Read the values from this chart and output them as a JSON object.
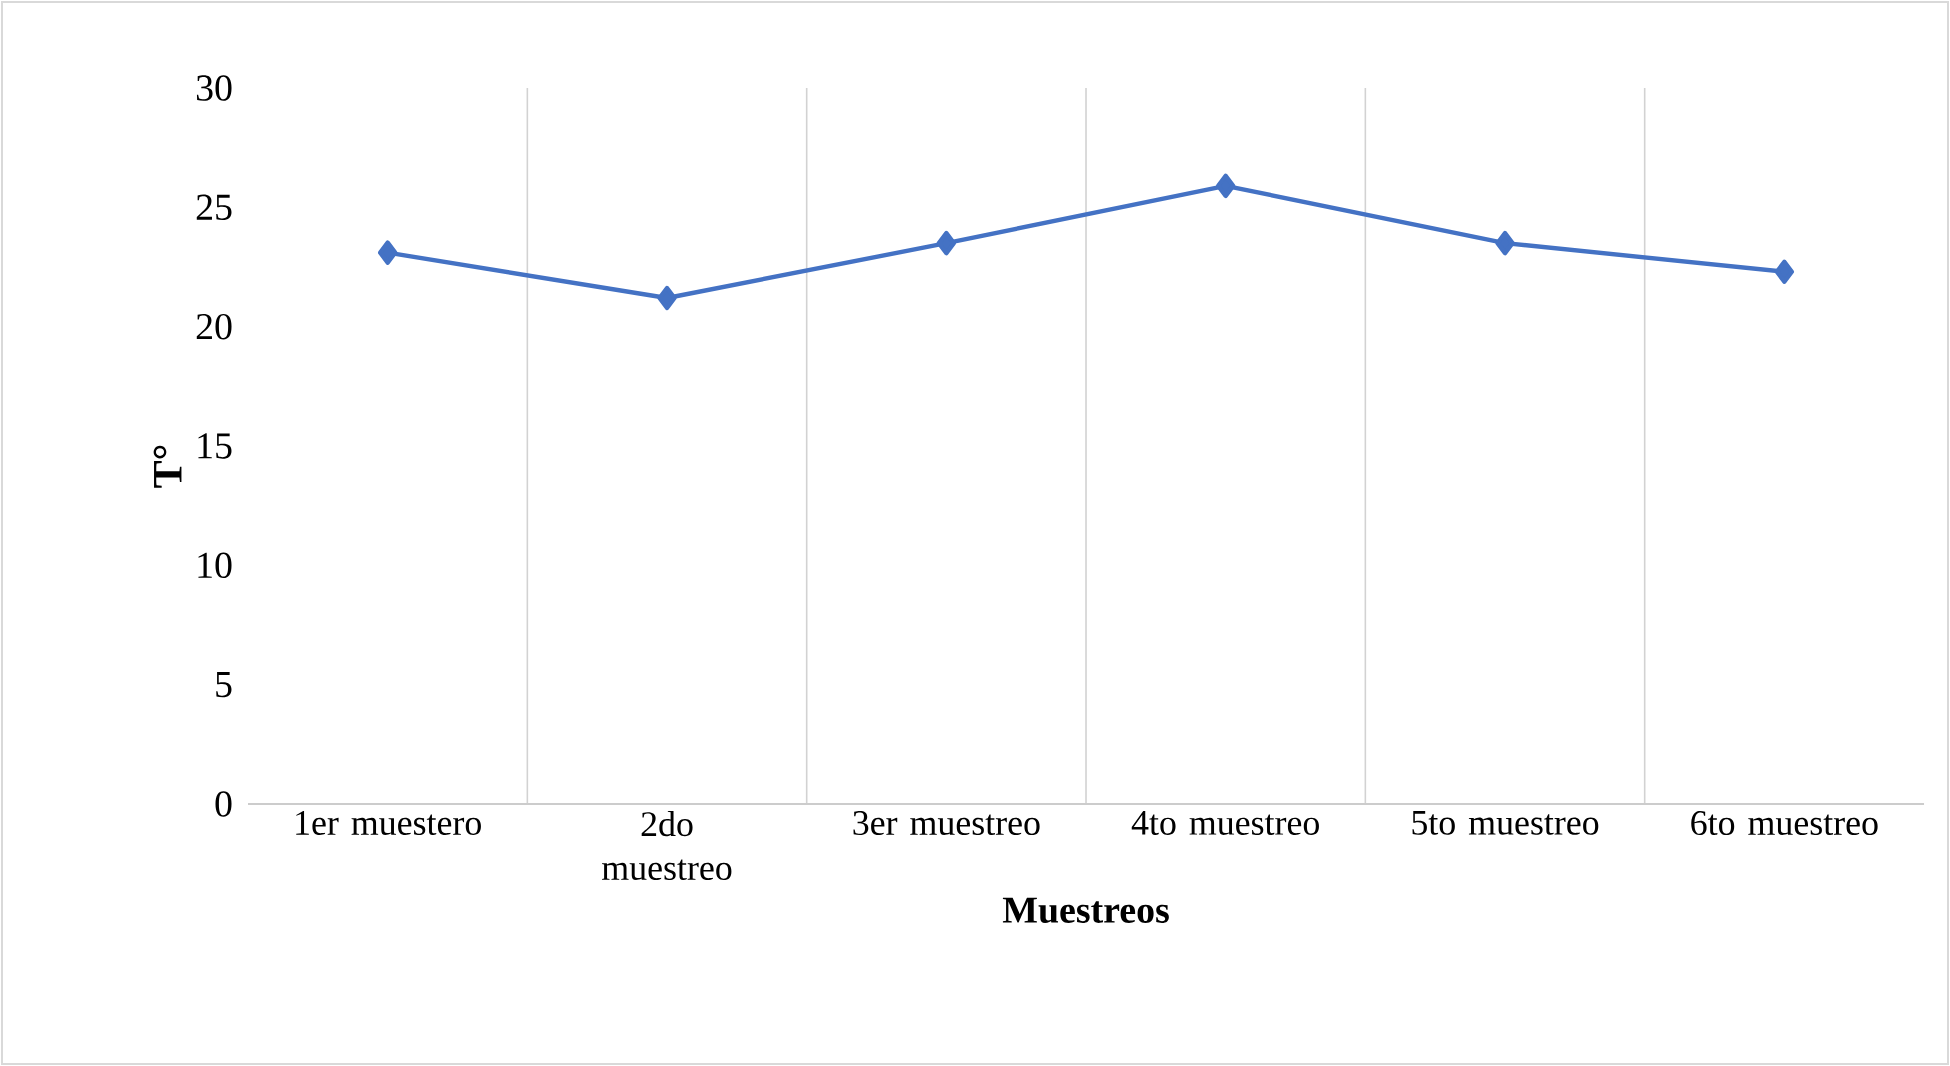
{
  "chart_data": {
    "type": "line",
    "xlabel": "Muestreos",
    "ylabel": "T°",
    "categories": [
      "1er muestero",
      "2do muestreo",
      "3er muestreo",
      "4to muestreo",
      "5to muestreo",
      "6to muestreo"
    ],
    "series": [
      {
        "color": "#4472c4",
        "values": [
          23.1,
          21.2,
          23.5,
          25.9,
          23.5,
          22.3
        ]
      }
    ],
    "ylim": [
      0,
      30
    ],
    "yticks": [
      0,
      5,
      10,
      15,
      20,
      25,
      30
    ],
    "grid": "x",
    "marker": "diamond",
    "line_style": "solid"
  }
}
